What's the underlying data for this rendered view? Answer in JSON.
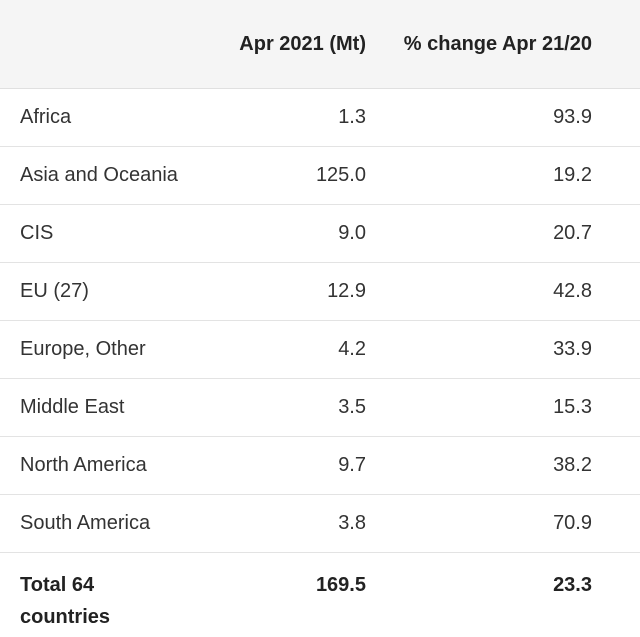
{
  "table": {
    "columns": [
      {
        "key": "region",
        "label": ""
      },
      {
        "key": "apr_2021_mt",
        "label": "Apr 2021 (Mt)"
      },
      {
        "key": "pct_change",
        "label": "% change Apr 21/20"
      }
    ],
    "rows": [
      {
        "region": "Africa",
        "apr_2021_mt": "1.3",
        "pct_change": "93.9"
      },
      {
        "region": "Asia and Oceania",
        "apr_2021_mt": "125.0",
        "pct_change": "19.2"
      },
      {
        "region": "CIS",
        "apr_2021_mt": "9.0",
        "pct_change": "20.7"
      },
      {
        "region": "EU (27)",
        "apr_2021_mt": "12.9",
        "pct_change": "42.8"
      },
      {
        "region": "Europe, Other",
        "apr_2021_mt": "4.2",
        "pct_change": "33.9"
      },
      {
        "region": "Middle East",
        "apr_2021_mt": "3.5",
        "pct_change": "15.3"
      },
      {
        "region": "North America",
        "apr_2021_mt": "9.7",
        "pct_change": "38.2"
      },
      {
        "region": "South America",
        "apr_2021_mt": "3.8",
        "pct_change": "70.9"
      }
    ],
    "total": {
      "region": "Total 64 countries",
      "apr_2021_mt": "169.5",
      "pct_change": "23.3"
    }
  }
}
